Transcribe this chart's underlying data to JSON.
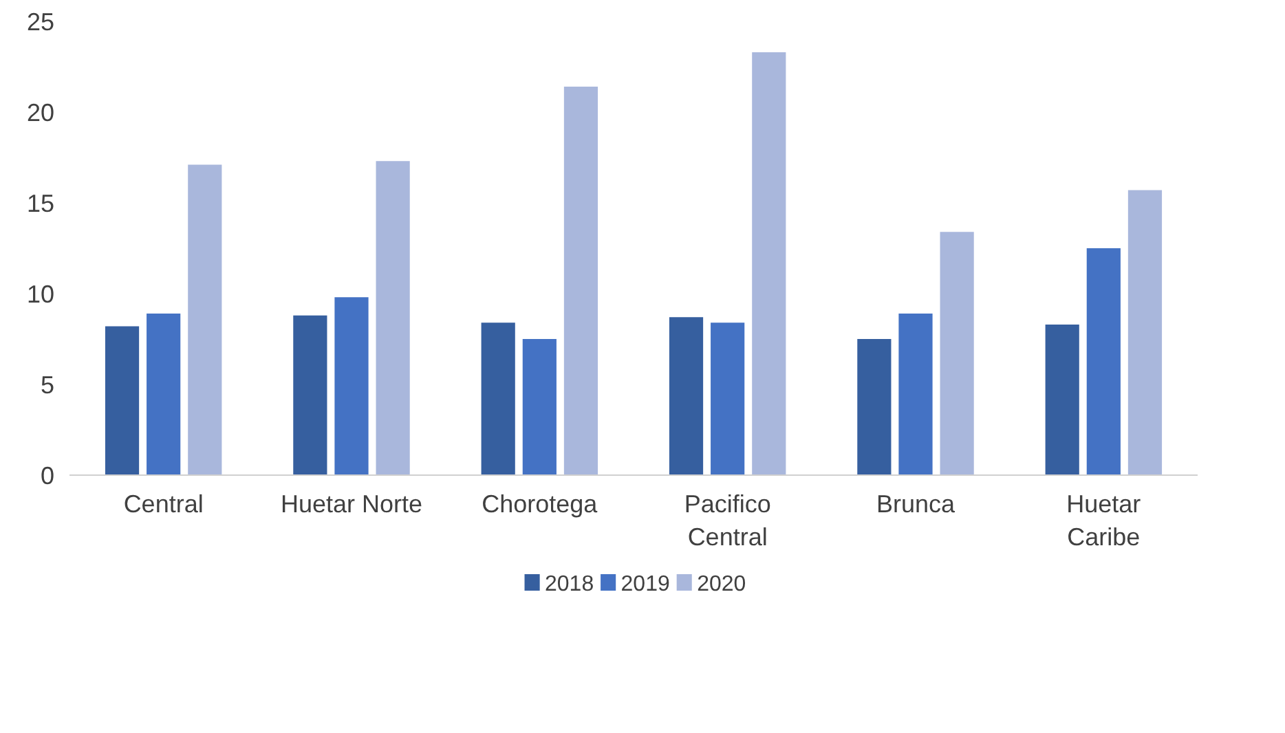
{
  "chart_data": {
    "type": "bar",
    "categories": [
      "Central",
      "Huetar Norte",
      "Chorotega",
      "Pacifico Central",
      "Brunca",
      "Huetar Caribe"
    ],
    "series": [
      {
        "name": "2018",
        "color": "#365f9f",
        "values": [
          8.2,
          8.8,
          8.4,
          8.7,
          7.5,
          8.3
        ]
      },
      {
        "name": "2019",
        "color": "#4472c4",
        "values": [
          8.9,
          9.8,
          7.5,
          8.4,
          8.9,
          12.5
        ]
      },
      {
        "name": "2020",
        "color": "#a9b7dc",
        "values": [
          17.1,
          17.3,
          21.4,
          23.3,
          13.4,
          15.7
        ]
      }
    ],
    "ylim": [
      0,
      25
    ],
    "yticks": [
      0,
      5,
      10,
      15,
      20,
      25
    ],
    "grid": false,
    "legend": "bottom"
  }
}
